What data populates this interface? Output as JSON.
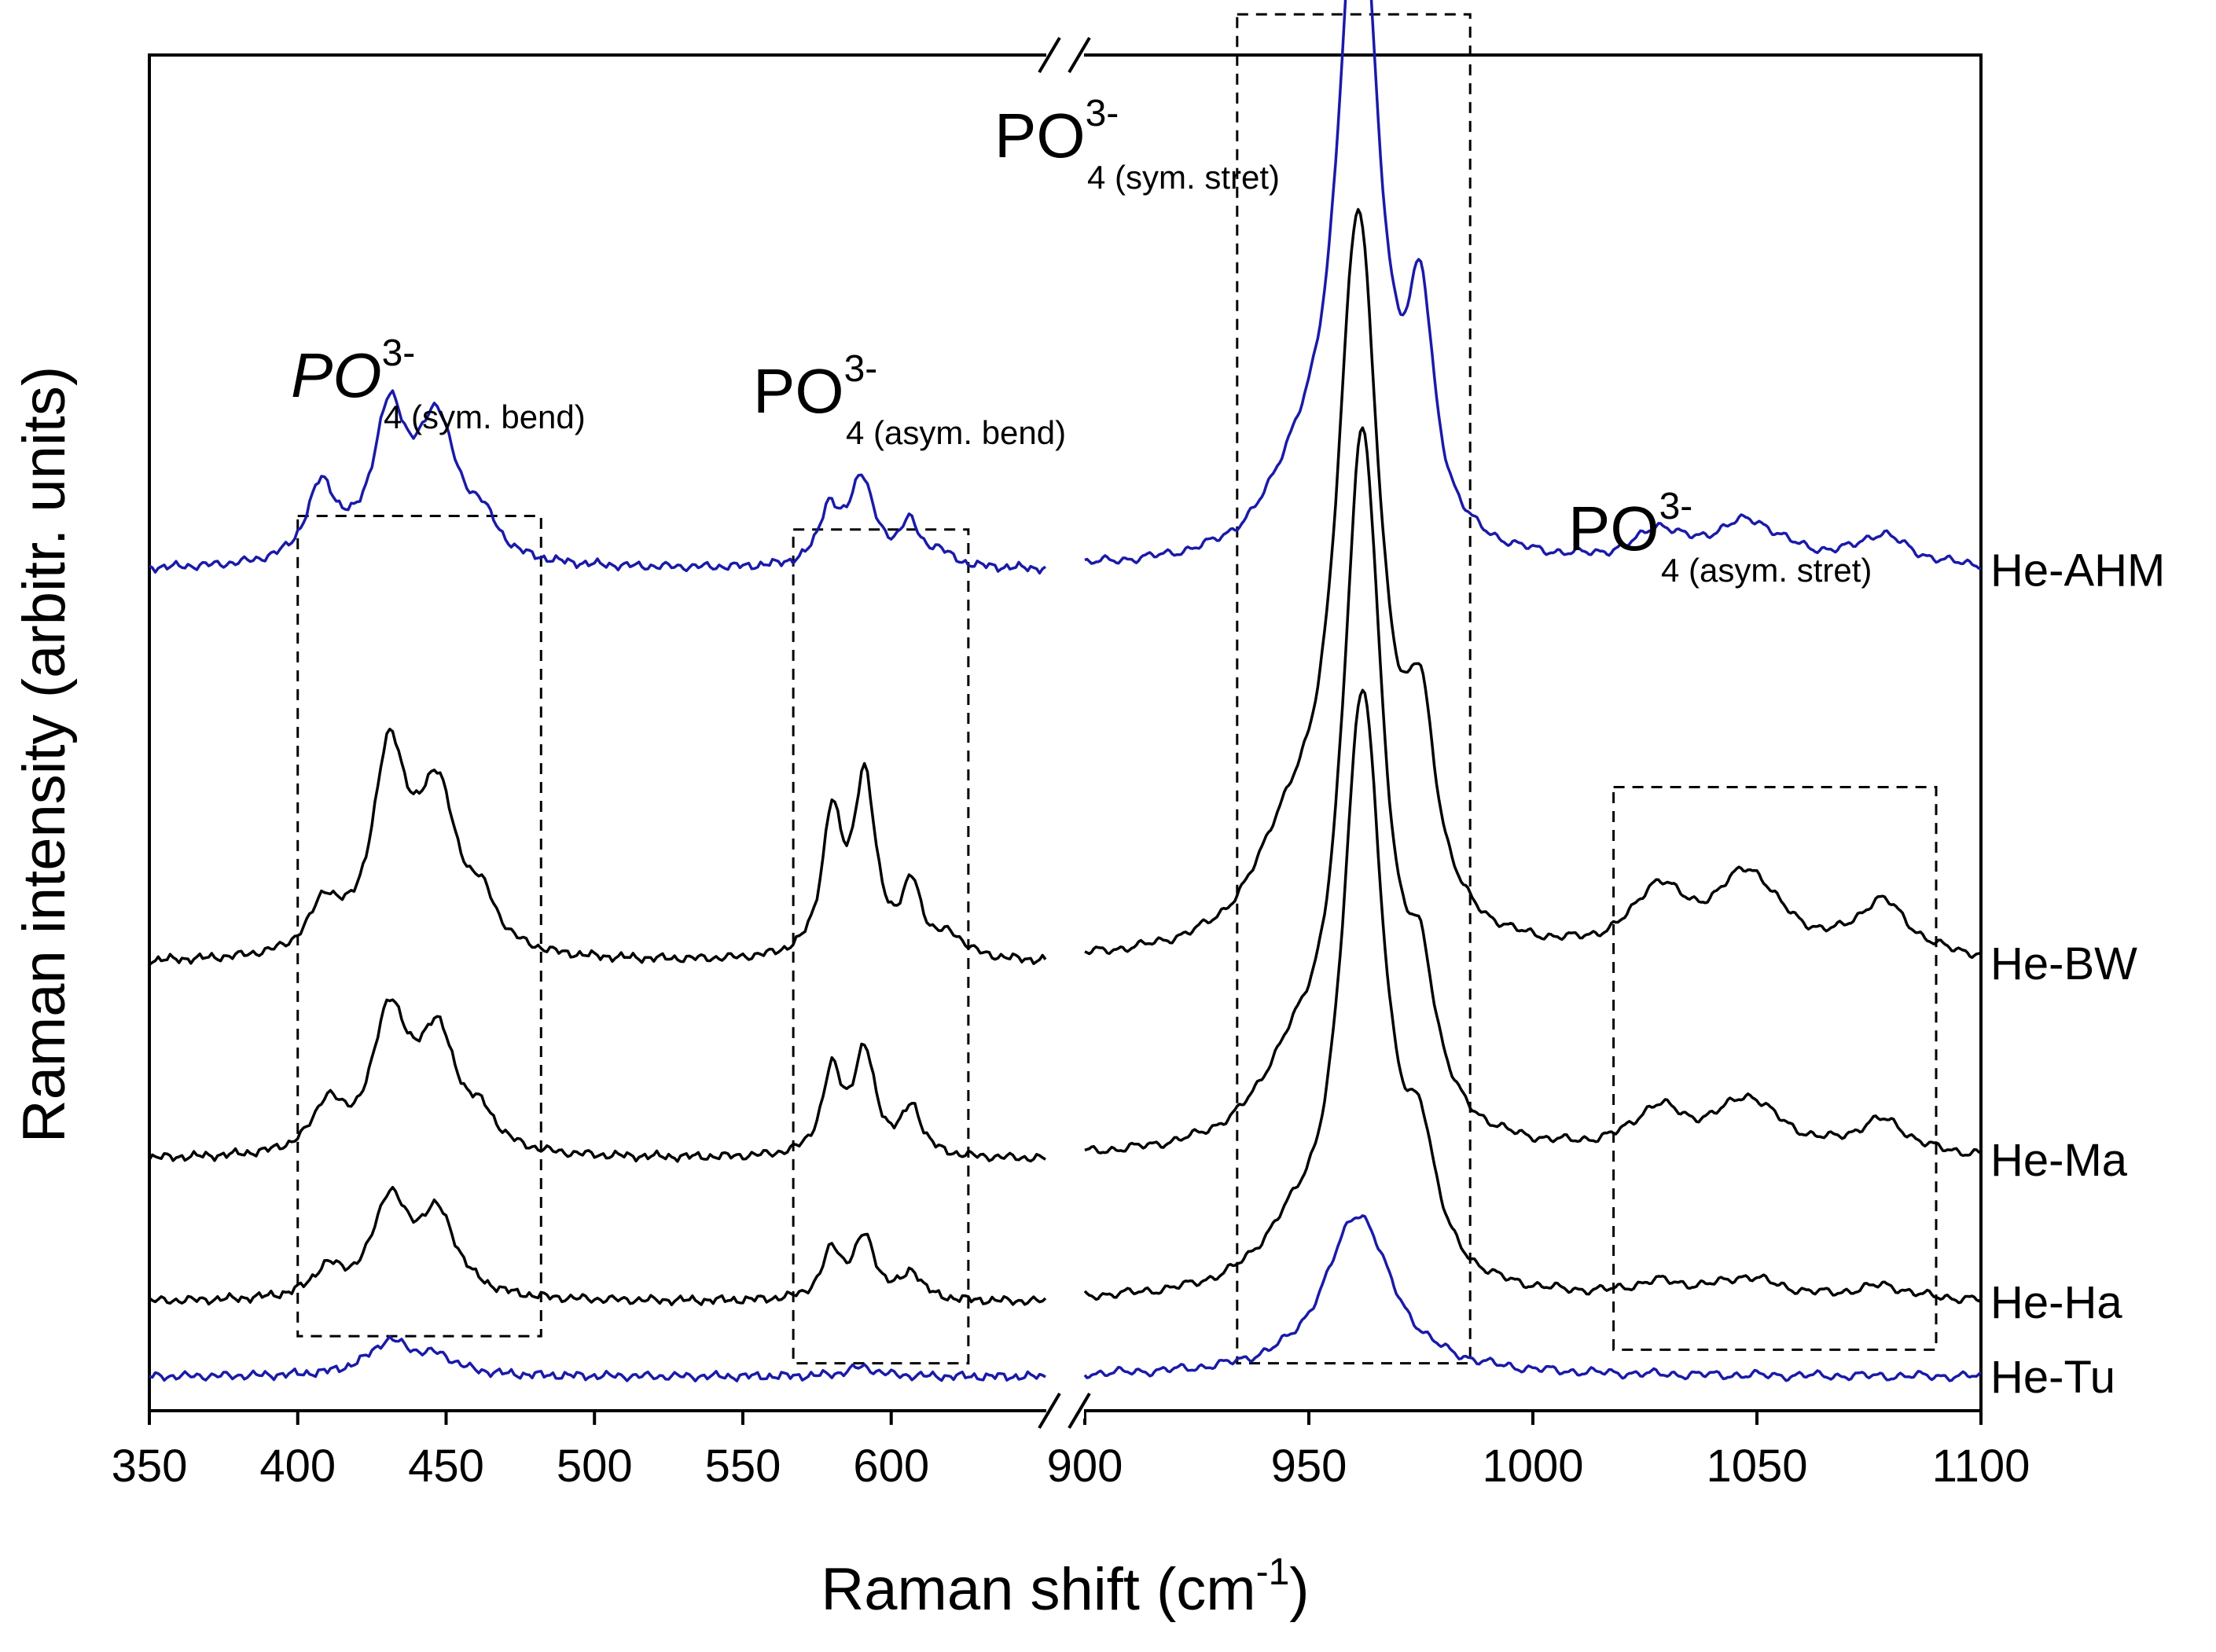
{
  "chart_data": {
    "type": "line",
    "title": "",
    "xlabel": "Raman shift (cm",
    "xlabel_sup": "-1",
    "xlabel_end": ")",
    "ylabel": "Raman intensity (arbitr. units)",
    "x_axis_broken": true,
    "x_segments": [
      {
        "range": [
          350,
          652
        ],
        "ticks": [
          "350",
          "400",
          "450",
          "500",
          "550",
          "600"
        ],
        "tick_values": [
          350,
          400,
          450,
          500,
          550,
          600
        ]
      },
      {
        "range": [
          900,
          1100
        ],
        "ticks": [
          "900",
          "950",
          "1000",
          "1050",
          "1100"
        ],
        "tick_values": [
          900,
          950,
          1000,
          1050,
          1100
        ]
      }
    ],
    "ylim": [
      0,
      10
    ],
    "yticks": "none",
    "series": [
      {
        "name": "He-AHM",
        "color": "#1a1aa8",
        "offset": 6.2,
        "peaks": [
          [
            408,
            0.55,
            6
          ],
          [
            431,
            1.05,
            7
          ],
          [
            447,
            1.0,
            8
          ],
          [
            462,
            0.25,
            6
          ],
          [
            579,
            0.4,
            4
          ],
          [
            590,
            0.65,
            5
          ],
          [
            606,
            0.3,
            4
          ],
          [
            616,
            0.1,
            5
          ],
          [
            961,
            5.1,
            5.5
          ],
          [
            975,
            1.55,
            3.5
          ],
          [
            947,
            0.4,
            8
          ],
          [
            1028,
            0.22,
            6
          ],
          [
            1048,
            0.32,
            10
          ],
          [
            1078,
            0.22,
            7
          ]
        ]
      },
      {
        "name": "He-BW",
        "color": "#000000",
        "offset": 3.3,
        "peaks": [
          [
            409,
            0.35,
            6
          ],
          [
            431,
            1.45,
            7
          ],
          [
            447,
            1.15,
            8
          ],
          [
            462,
            0.3,
            6
          ],
          [
            580,
            1.0,
            4
          ],
          [
            591,
            1.3,
            4.5
          ],
          [
            607,
            0.5,
            4
          ],
          [
            620,
            0.15,
            6
          ],
          [
            961,
            5.3,
            6
          ],
          [
            975,
            1.3,
            4
          ],
          [
            945,
            0.6,
            9
          ],
          [
            1028,
            0.45,
            7
          ],
          [
            1048,
            0.6,
            9
          ],
          [
            1078,
            0.4,
            7
          ]
        ]
      },
      {
        "name": "He-Ma",
        "color": "#000000",
        "offset": 1.85,
        "peaks": [
          [
            410,
            0.35,
            6
          ],
          [
            431,
            1.0,
            7
          ],
          [
            447,
            0.85,
            8
          ],
          [
            462,
            0.2,
            6
          ],
          [
            580,
            0.6,
            4
          ],
          [
            591,
            0.75,
            4.5
          ],
          [
            607,
            0.35,
            4
          ],
          [
            962,
            5.2,
            5.5
          ],
          [
            975,
            0.9,
            4
          ],
          [
            946,
            0.45,
            9
          ],
          [
            1028,
            0.3,
            7
          ],
          [
            1048,
            0.4,
            9
          ],
          [
            1078,
            0.25,
            7
          ]
        ]
      },
      {
        "name": "He-Ha",
        "color": "#000000",
        "offset": 0.8,
        "peaks": [
          [
            410,
            0.2,
            6
          ],
          [
            431,
            0.7,
            7
          ],
          [
            447,
            0.6,
            8
          ],
          [
            580,
            0.35,
            4
          ],
          [
            591,
            0.45,
            4.5
          ],
          [
            607,
            0.2,
            4
          ],
          [
            962,
            4.4,
            5.5
          ],
          [
            975,
            0.8,
            4
          ],
          [
            946,
            0.3,
            9
          ],
          [
            1028,
            0.1,
            7
          ],
          [
            1048,
            0.15,
            9
          ],
          [
            1078,
            0.1,
            7
          ]
        ]
      },
      {
        "name": "He-Tu",
        "color": "#1a1aa8",
        "offset": 0.25,
        "peaks": [
          [
            431,
            0.25,
            9
          ],
          [
            447,
            0.12,
            8
          ],
          [
            590,
            0.07,
            6
          ],
          [
            961,
            1.2,
            9
          ]
        ]
      }
    ],
    "annotations": [
      {
        "main": "PO",
        "sup": "3-",
        "sub": "4 (sym. bend)",
        "italic_main": true
      },
      {
        "main": "PO",
        "sup": "3-",
        "sub": "4 (asym. bend)",
        "italic_main": false
      },
      {
        "main": "PO",
        "sup": "3-",
        "sub": "4 (sym. stret)",
        "italic_main": false
      },
      {
        "main": "PO",
        "sup": "3-",
        "sub": "4 (asym. stret)",
        "italic_main": false
      }
    ],
    "dashed_boxes": [
      {
        "x": [
          400,
          482
        ],
        "y": [
          0.55,
          6.6
        ]
      },
      {
        "x": [
          567,
          626
        ],
        "y": [
          0.35,
          6.5
        ]
      },
      {
        "x": [
          934,
          986
        ],
        "y": [
          0.35,
          10.3
        ]
      },
      {
        "x": [
          1018,
          1090
        ],
        "y": [
          0.45,
          4.6
        ]
      }
    ]
  }
}
